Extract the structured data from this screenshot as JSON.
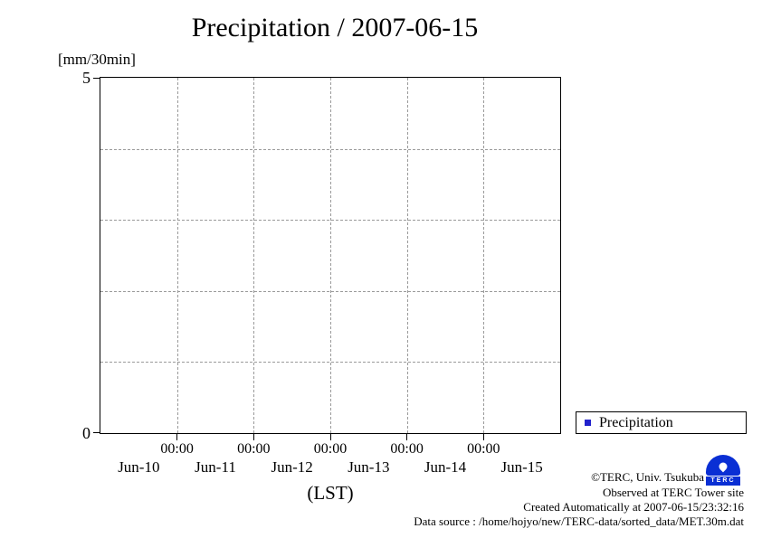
{
  "chart_data": {
    "type": "bar",
    "title": "Precipitation / 2007-06-15",
    "unit_label": "[mm/30min]",
    "xlabel": "(LST)",
    "ylim": [
      0,
      5
    ],
    "ymax_label": "5",
    "ymin_label": "0",
    "x_days": [
      "Jun-10",
      "Jun-11",
      "Jun-12",
      "Jun-13",
      "Jun-14",
      "Jun-15"
    ],
    "time_tick_label": "00:00",
    "grid": true,
    "legend_position": "outside-right-bottom",
    "series": [
      {
        "name": "Precipitation",
        "color": "#2222cc",
        "values": []
      }
    ]
  },
  "legend": {
    "label": "Precipitation",
    "marker_color": "#2222cc"
  },
  "footer": {
    "copyright": "©TERC, Univ. Tsukuba",
    "observed": "Observed at TERC Tower site",
    "created": "Created Automatically at 2007-06-15/23:32:16",
    "source": "Data source : /home/hojyo/new/TERC-data/sorted_data/MET.30m.dat"
  },
  "logo": {
    "label": "TERC",
    "color": "#0a2fd4"
  }
}
